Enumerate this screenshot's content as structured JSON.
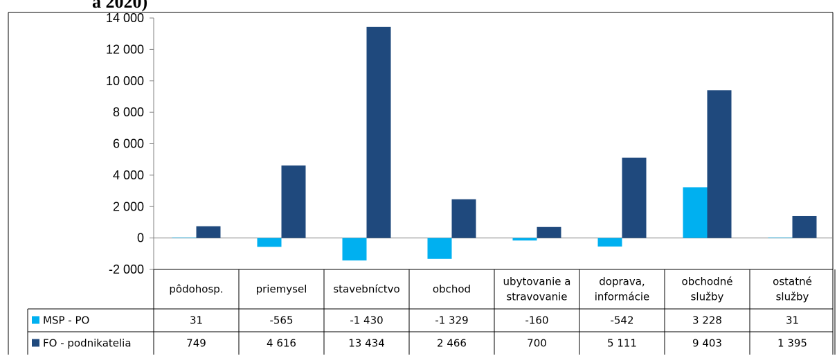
{
  "title_fragment": "a 2020)",
  "chart_data": {
    "type": "bar",
    "categories": [
      [
        "pôdohosp."
      ],
      [
        "priemysel"
      ],
      [
        "stavebníctvo"
      ],
      [
        "obchod"
      ],
      [
        "ubytovanie a",
        "stravovanie"
      ],
      [
        "doprava,",
        "informácie"
      ],
      [
        "obchodné",
        "služby"
      ],
      [
        "ostatné",
        "služby"
      ]
    ],
    "series": [
      {
        "name": "MSP - PO",
        "color": "#00b0f0",
        "values": [
          31,
          -565,
          -1430,
          -1329,
          -160,
          -542,
          3228,
          31
        ],
        "labels": [
          "31",
          "-565",
          "-1 430",
          "-1 329",
          "-160",
          "-542",
          "3 228",
          "31"
        ]
      },
      {
        "name": "FO - podnikatelia",
        "color": "#1f497d",
        "values": [
          749,
          4616,
          13434,
          2466,
          700,
          5111,
          9403,
          1395
        ],
        "labels": [
          "749",
          "4 616",
          "13 434",
          "2 466",
          "700",
          "5 111",
          "9 403",
          "1 395"
        ]
      }
    ],
    "ylim": [
      -2000,
      14000
    ],
    "yticks": [
      14000,
      12000,
      10000,
      8000,
      6000,
      4000,
      2000,
      0,
      -2000
    ],
    "ytick_labels": [
      "14 000",
      "12 000",
      "10 000",
      "8 000",
      "6 000",
      "4 000",
      "2 000",
      "0",
      "-2 000"
    ],
    "legend": "data-table",
    "grid": false
  }
}
